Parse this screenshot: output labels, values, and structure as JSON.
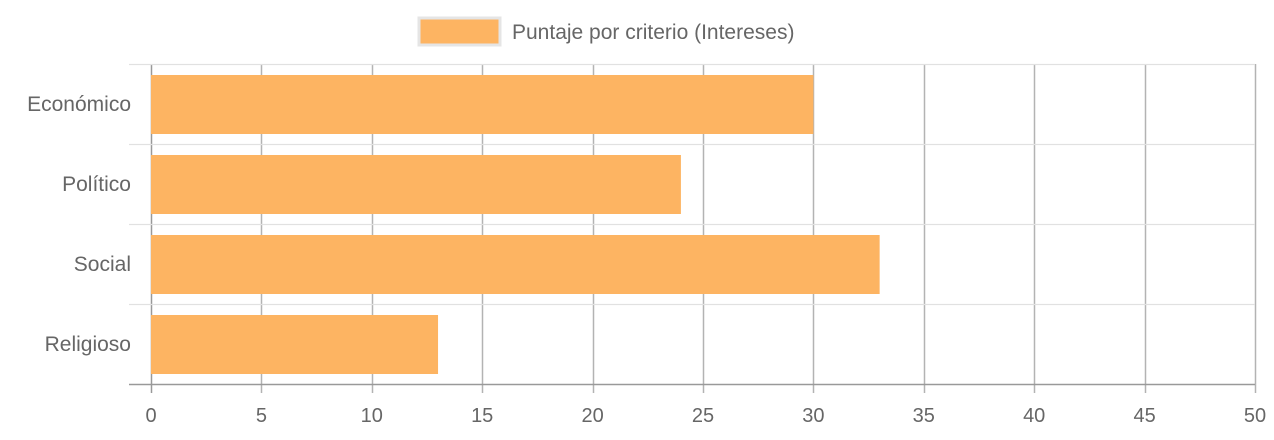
{
  "chart_data": {
    "type": "bar",
    "orientation": "horizontal",
    "categories": [
      "Económico",
      "Político",
      "Social",
      "Religioso"
    ],
    "series": [
      {
        "name": "Puntaje por criterio (Intereses)",
        "values": [
          30,
          24,
          33,
          13
        ],
        "color": "#fdb462"
      }
    ],
    "xlim": [
      0,
      50
    ],
    "xticks": [
      0,
      5,
      10,
      15,
      20,
      25,
      30,
      35,
      40,
      45,
      50
    ],
    "grid": true,
    "legend": "top-center"
  }
}
